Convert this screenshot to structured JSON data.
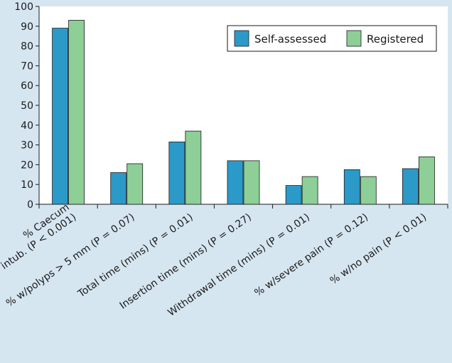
{
  "chart_data": {
    "type": "bar",
    "title": "",
    "xlabel": "",
    "ylabel": "",
    "ylim": [
      0,
      100
    ],
    "yticks": [
      0,
      10,
      20,
      30,
      40,
      50,
      60,
      70,
      80,
      90,
      100
    ],
    "grid": false,
    "legend_position": "top-right",
    "categories": [
      [
        "% Caecum",
        "intub. (P < 0.001)"
      ],
      [
        "% w/polyps > 5 mm (P = 0.07)"
      ],
      [
        "Total time (mins) (P = 0.01)"
      ],
      [
        "Insertion time (mins) (P = 0.27)"
      ],
      [
        "Withdrawal time (mins) (P = 0.01)"
      ],
      [
        "% w/severe pain (P = 0.12)"
      ],
      [
        "% w/no pain (P < 0.01)"
      ]
    ],
    "series": [
      {
        "name": "Self-assessed",
        "color": "#2b9ac8",
        "values": [
          89,
          16,
          31.5,
          22,
          9.5,
          17.5,
          18
        ]
      },
      {
        "name": "Registered",
        "color": "#8dcf96",
        "values": [
          93,
          20.5,
          37,
          22,
          14,
          14,
          24
        ]
      }
    ]
  },
  "colors": {
    "background": "#d6e6f1",
    "plot_background": "#ffffff",
    "axis": "#1a1a1a"
  }
}
